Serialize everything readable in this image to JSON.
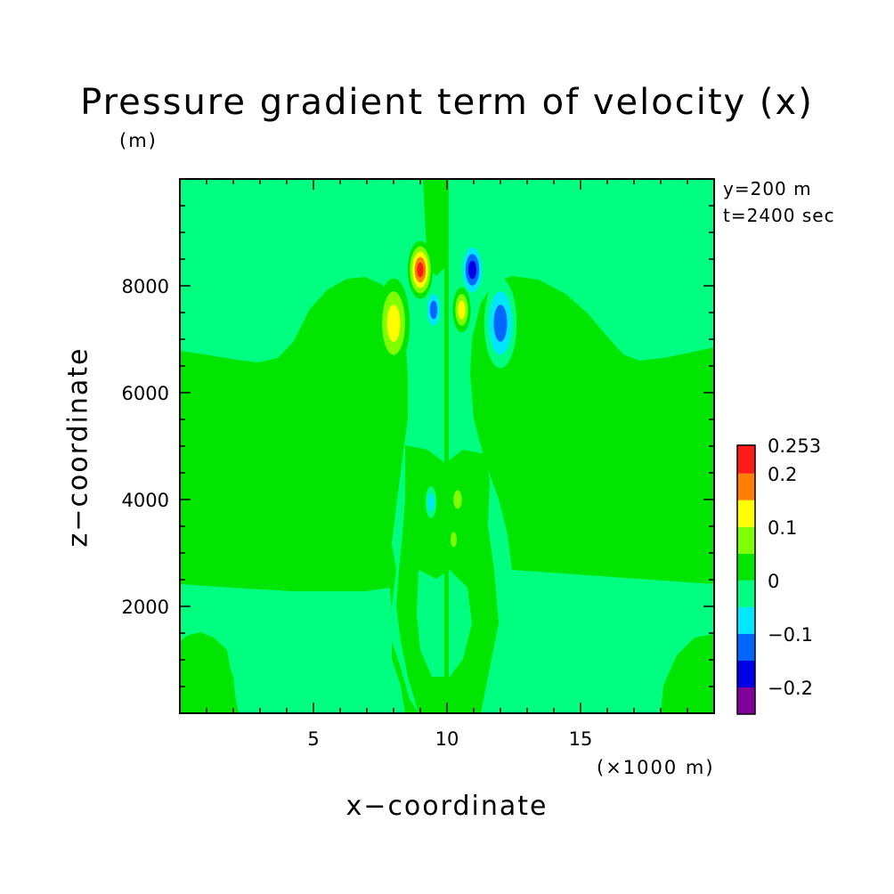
{
  "chart_data": {
    "type": "heatmap",
    "title": "Pressure gradient term of velocity (x)",
    "xlabel": "x−coordinate",
    "ylabel": "z−coordinate",
    "x_unit": "(×1000 m)",
    "y_unit": "(m)",
    "annotations": [
      "y=200 m",
      "t=2400 sec"
    ],
    "xlim": [
      0,
      20
    ],
    "ylim": [
      0,
      10000
    ],
    "x_ticks": [
      5,
      10,
      15
    ],
    "x_tick_labels": [
      "5",
      "10",
      "15"
    ],
    "y_ticks": [
      2000,
      4000,
      6000,
      8000
    ],
    "y_tick_labels": [
      "2000",
      "4000",
      "6000",
      "8000"
    ],
    "colorbar": {
      "max_label": "0.253",
      "labels": [
        "0.2",
        "0.1",
        "0",
        "−0.1",
        "−0.2"
      ],
      "label_levels": [
        0.2,
        0.1,
        0,
        -0.1,
        -0.2
      ],
      "levels": [
        {
          "range": [
            0.2,
            0.253
          ],
          "color": "#ff1a1a"
        },
        {
          "range": [
            0.15,
            0.2
          ],
          "color": "#ff8000"
        },
        {
          "range": [
            0.1,
            0.15
          ],
          "color": "#ffff00"
        },
        {
          "range": [
            0.05,
            0.1
          ],
          "color": "#80ff00"
        },
        {
          "range": [
            0,
            0.05
          ],
          "color": "#00e600"
        },
        {
          "range": [
            -0.05,
            0
          ],
          "color": "#00ff80"
        },
        {
          "range": [
            -0.1,
            -0.05
          ],
          "color": "#00e6ff"
        },
        {
          "range": [
            -0.15,
            -0.1
          ],
          "color": "#0066ff"
        },
        {
          "range": [
            -0.2,
            -0.15
          ],
          "color": "#0000e6"
        },
        {
          "range": [
            -0.25,
            -0.2
          ],
          "color": "#800099"
        }
      ]
    },
    "features": [
      {
        "kind": "cell",
        "x": 9.0,
        "z": 8300,
        "rx": 0.35,
        "rz": 450,
        "value": 0.25
      },
      {
        "kind": "cell",
        "x": 10.95,
        "z": 8300,
        "rx": 0.35,
        "rz": 450,
        "value": -0.2
      },
      {
        "kind": "cell",
        "x": 8.0,
        "z": 7300,
        "rx": 0.45,
        "rz": 700,
        "value": 0.12
      },
      {
        "kind": "cell",
        "x": 12.0,
        "z": 7300,
        "rx": 0.45,
        "rz": 700,
        "value": -0.12
      },
      {
        "kind": "cell",
        "x": 9.5,
        "z": 7550,
        "rx": 0.25,
        "rz": 350,
        "value": -0.11
      },
      {
        "kind": "cell",
        "x": 10.55,
        "z": 7550,
        "rx": 0.25,
        "rz": 350,
        "value": 0.11
      },
      {
        "kind": "cell",
        "x": 9.4,
        "z": 3950,
        "rx": 0.15,
        "rz": 250,
        "value": -0.1
      },
      {
        "kind": "cell",
        "x": 10.4,
        "z": 4000,
        "rx": 0.2,
        "rz": 250,
        "value": 0.08
      },
      {
        "kind": "cell",
        "x": 10.25,
        "z": 3250,
        "rx": 0.15,
        "rz": 200,
        "value": 0.08
      }
    ]
  }
}
